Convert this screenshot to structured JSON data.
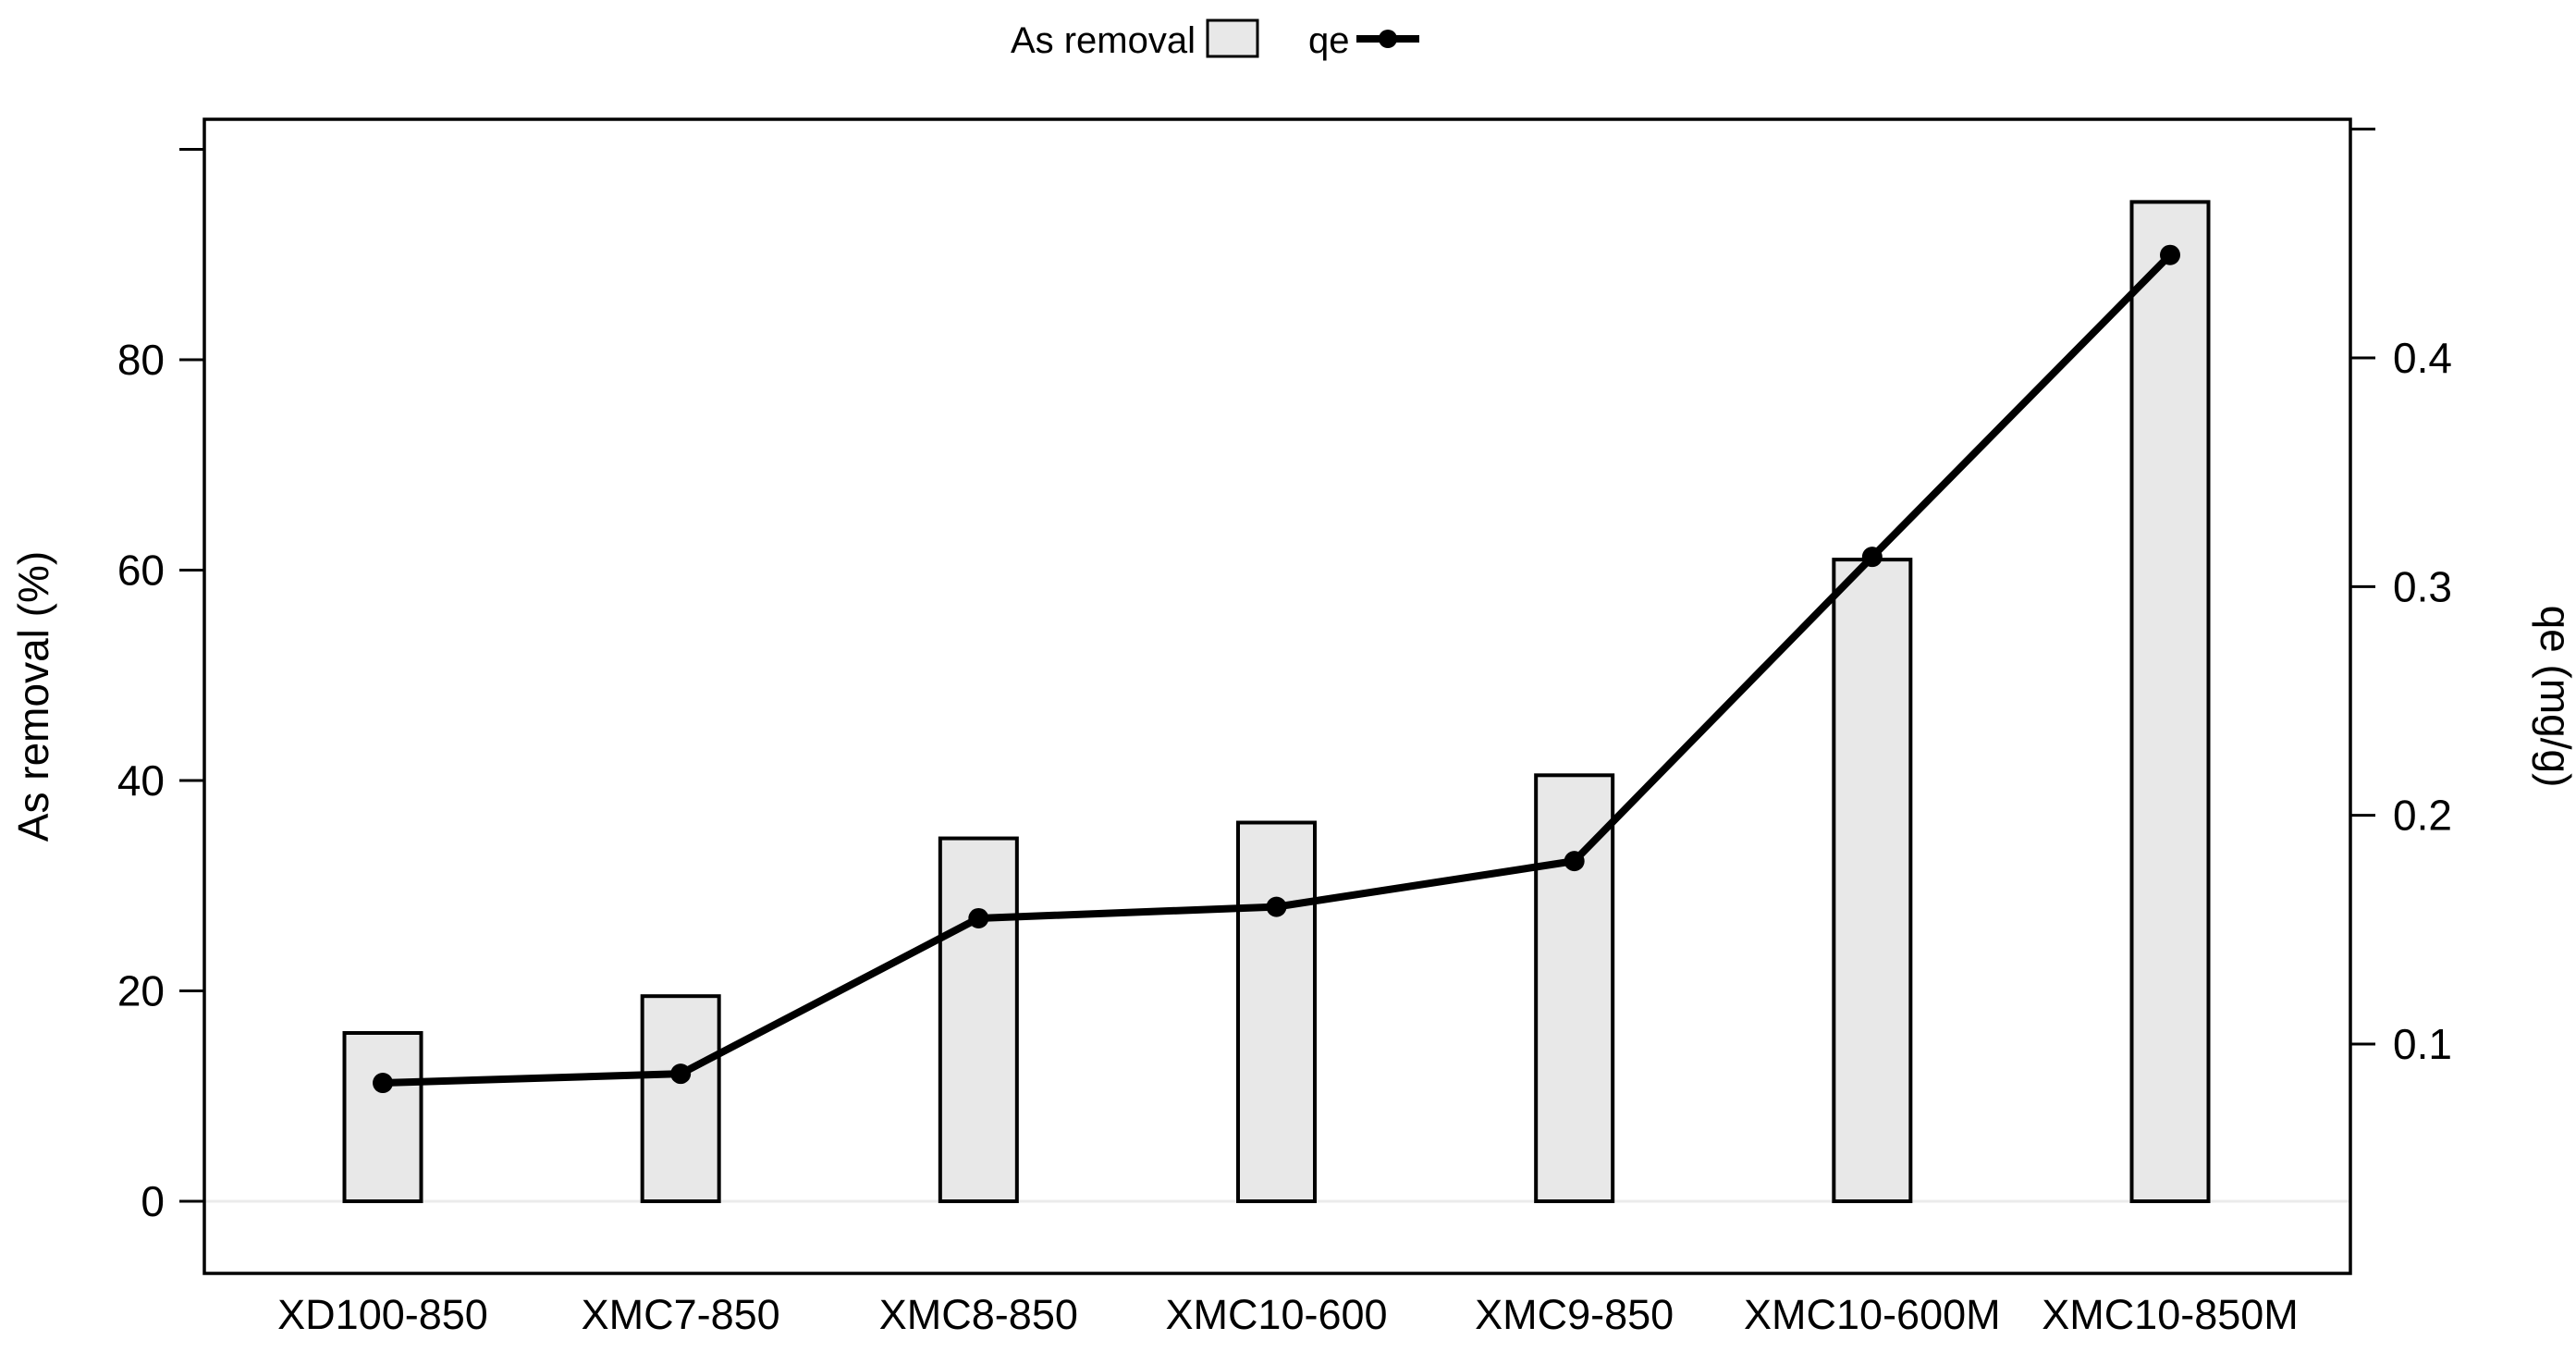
{
  "page": {
    "background": "#ffffff"
  },
  "legend": {
    "bar_label": "As removal",
    "line_label": "qe"
  },
  "axes": {
    "left_title": "As removal (%)",
    "right_title": "qe (mg/g)"
  },
  "chart_data": {
    "type": "bar+line combo (dual y-axis)",
    "categories": [
      "XD100-850",
      "XMC7-850",
      "XMC8-850",
      "XMC10-600",
      "XMC9-850",
      "XMC10-600M",
      "XMC10-850M"
    ],
    "series": [
      {
        "name": "As removal",
        "type": "bar",
        "axis": "left",
        "unit": "%",
        "values": [
          16,
          19.5,
          34.5,
          36,
          40.5,
          61,
          95
        ]
      },
      {
        "name": "qe",
        "type": "line",
        "axis": "right",
        "unit": "mg/g",
        "values": [
          0.083,
          0.087,
          0.155,
          0.16,
          0.18,
          0.313,
          0.445
        ]
      }
    ],
    "left_axis": {
      "title": "As removal (%)",
      "range": [
        0,
        100
      ],
      "ticks": [
        0,
        20,
        40,
        60,
        80
      ],
      "tick_labels": [
        "0",
        "20",
        "40",
        "60",
        "80"
      ],
      "unlabeled_ticks": [
        100
      ]
    },
    "right_axis": {
      "title": "qe (mg/g)",
      "range": [
        0,
        0.5
      ],
      "ticks": [
        0.1,
        0.2,
        0.3,
        0.4
      ],
      "tick_labels": [
        "0.1",
        "0.2",
        "0.3",
        "0.4"
      ],
      "unlabeled_ticks": [
        0.5
      ]
    },
    "legend_position": "top-center",
    "grid": "none (light zero line only)",
    "colors": {
      "bar_fill": "#e8e8e8",
      "bar_stroke": "#000000",
      "line": "#000000",
      "marker": "#000000",
      "zero_line": "#ebebeb",
      "frame": "#000000",
      "text": "#000000"
    }
  }
}
